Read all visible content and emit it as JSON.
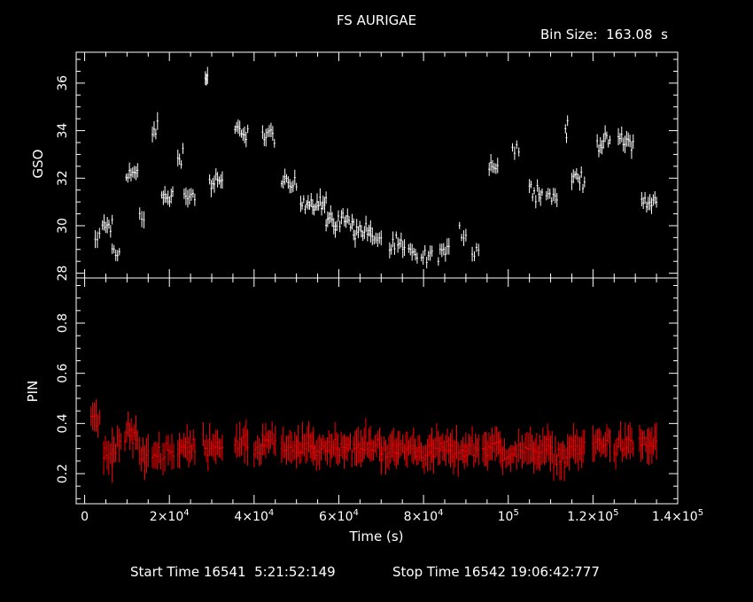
{
  "title": "FS AURIGAE",
  "bin_size": "Bin Size:  163.08  s",
  "footer": {
    "start": "Start Time 16541  5:21:52:149",
    "stop": "Stop Time 16542 19:06:42:777"
  },
  "colors": {
    "background": "#000000",
    "axes": "#ffffff",
    "gso": "#ffffff",
    "pin": "#ff0000"
  },
  "chart_data": [
    {
      "type": "scatter",
      "panel": "top",
      "ylabel": "GSO",
      "xlabel": "",
      "xlim": [
        -2000,
        140000
      ],
      "ylim": [
        27.8,
        37.3
      ],
      "yticks": [
        28,
        30,
        32,
        34,
        36
      ],
      "series": [
        {
          "style": "error-bars",
          "color": "#ffffff",
          "segments": [
            {
              "x0": 2500,
              "x1": 3500,
              "level": 29.4
            },
            {
              "x0": 4200,
              "x1": 6500,
              "level": 30.0
            },
            {
              "x0": 6500,
              "x1": 8200,
              "level": 28.8
            },
            {
              "x0": 9800,
              "x1": 12500,
              "level": 32.2
            },
            {
              "x0": 13000,
              "x1": 14000,
              "level": 30.3
            },
            {
              "x0": 16000,
              "x1": 17200,
              "level": 34.1
            },
            {
              "x0": 18200,
              "x1": 20800,
              "level": 31.2
            },
            {
              "x0": 22000,
              "x1": 23200,
              "level": 33.0
            },
            {
              "x0": 23500,
              "x1": 26000,
              "level": 31.3
            },
            {
              "x0": 28500,
              "x1": 29000,
              "level": 36.2
            },
            {
              "x0": 29500,
              "x1": 32500,
              "level": 31.8
            },
            {
              "x0": 35500,
              "x1": 38500,
              "level": 34.0
            },
            {
              "x0": 42000,
              "x1": 44800,
              "level": 33.8
            },
            {
              "x0": 46500,
              "x1": 50000,
              "level": 31.7
            },
            {
              "x0": 51000,
              "x1": 57000,
              "level": 31.0
            },
            {
              "x0": 57000,
              "x1": 63500,
              "level": 30.2
            },
            {
              "x0": 63500,
              "x1": 67500,
              "level": 29.8
            },
            {
              "x0": 67500,
              "x1": 70000,
              "level": 29.5
            },
            {
              "x0": 72000,
              "x1": 75500,
              "level": 29.1
            },
            {
              "x0": 76500,
              "x1": 78500,
              "level": 28.8
            },
            {
              "x0": 79500,
              "x1": 82000,
              "level": 28.6
            },
            {
              "x0": 83500,
              "x1": 86000,
              "level": 28.9
            },
            {
              "x0": 88500,
              "x1": 90000,
              "level": 29.7
            },
            {
              "x0": 91500,
              "x1": 93000,
              "level": 29.0
            },
            {
              "x0": 95500,
              "x1": 97500,
              "level": 32.6
            },
            {
              "x0": 101000,
              "x1": 102500,
              "level": 33.2
            },
            {
              "x0": 105000,
              "x1": 108000,
              "level": 31.5
            },
            {
              "x0": 109000,
              "x1": 111500,
              "level": 31.2
            },
            {
              "x0": 113500,
              "x1": 114000,
              "level": 34.0
            },
            {
              "x0": 115000,
              "x1": 118000,
              "level": 32.0
            },
            {
              "x0": 121000,
              "x1": 124000,
              "level": 33.5
            },
            {
              "x0": 126000,
              "x1": 129500,
              "level": 33.6
            },
            {
              "x0": 131500,
              "x1": 135000,
              "level": 31.0
            }
          ]
        }
      ]
    },
    {
      "type": "scatter",
      "panel": "bottom",
      "ylabel": "PIN",
      "xlabel": "Time (s)",
      "xlim": [
        -2000,
        140000
      ],
      "ylim": [
        0.08,
        0.98
      ],
      "yticks": [
        0.2,
        0.4,
        0.6,
        0.8
      ],
      "xticks": [
        {
          "value": 0,
          "mantissa": "0",
          "exp": ""
        },
        {
          "value": 20000,
          "mantissa": "2×10",
          "exp": "4"
        },
        {
          "value": 40000,
          "mantissa": "4×10",
          "exp": "4"
        },
        {
          "value": 60000,
          "mantissa": "6×10",
          "exp": "4"
        },
        {
          "value": 80000,
          "mantissa": "8×10",
          "exp": "4"
        },
        {
          "value": 100000,
          "mantissa": "10",
          "exp": "5"
        },
        {
          "value": 120000,
          "mantissa": "1.2×10",
          "exp": "5"
        },
        {
          "value": 140000,
          "mantissa": "1.4×10",
          "exp": "5"
        }
      ],
      "series": [
        {
          "style": "error-bars",
          "color": "#ff0000",
          "segments": [
            {
              "x0": 1500,
              "x1": 3500,
              "level": 0.42
            },
            {
              "x0": 4500,
              "x1": 6500,
              "level": 0.27
            },
            {
              "x0": 6500,
              "x1": 8500,
              "level": 0.32
            },
            {
              "x0": 9500,
              "x1": 12500,
              "level": 0.35
            },
            {
              "x0": 13000,
              "x1": 15000,
              "level": 0.27
            },
            {
              "x0": 16000,
              "x1": 18000,
              "level": 0.28
            },
            {
              "x0": 18500,
              "x1": 21000,
              "level": 0.29
            },
            {
              "x0": 22000,
              "x1": 26000,
              "level": 0.3
            },
            {
              "x0": 28000,
              "x1": 32500,
              "level": 0.32
            },
            {
              "x0": 35500,
              "x1": 38500,
              "level": 0.31
            },
            {
              "x0": 40000,
              "x1": 42000,
              "level": 0.3
            },
            {
              "x0": 42000,
              "x1": 45000,
              "level": 0.33
            },
            {
              "x0": 46500,
              "x1": 50000,
              "level": 0.29
            },
            {
              "x0": 50000,
              "x1": 54000,
              "level": 0.31
            },
            {
              "x0": 54000,
              "x1": 58000,
              "level": 0.3
            },
            {
              "x0": 58000,
              "x1": 62000,
              "level": 0.31
            },
            {
              "x0": 62000,
              "x1": 66000,
              "level": 0.3
            },
            {
              "x0": 66000,
              "x1": 70000,
              "level": 0.31
            },
            {
              "x0": 70000,
              "x1": 74000,
              "level": 0.29
            },
            {
              "x0": 74000,
              "x1": 78000,
              "level": 0.3
            },
            {
              "x0": 78000,
              "x1": 82000,
              "level": 0.29
            },
            {
              "x0": 82000,
              "x1": 86000,
              "level": 0.3
            },
            {
              "x0": 86000,
              "x1": 90000,
              "level": 0.29
            },
            {
              "x0": 90000,
              "x1": 93000,
              "level": 0.3
            },
            {
              "x0": 94000,
              "x1": 98000,
              "level": 0.31
            },
            {
              "x0": 98000,
              "x1": 102000,
              "level": 0.28
            },
            {
              "x0": 102500,
              "x1": 106000,
              "level": 0.29
            },
            {
              "x0": 106000,
              "x1": 110000,
              "level": 0.3
            },
            {
              "x0": 110000,
              "x1": 114000,
              "level": 0.27
            },
            {
              "x0": 114000,
              "x1": 118000,
              "level": 0.3
            },
            {
              "x0": 120000,
              "x1": 124000,
              "level": 0.32
            },
            {
              "x0": 125000,
              "x1": 129500,
              "level": 0.31
            },
            {
              "x0": 131000,
              "x1": 135000,
              "level": 0.32
            }
          ]
        }
      ]
    }
  ]
}
